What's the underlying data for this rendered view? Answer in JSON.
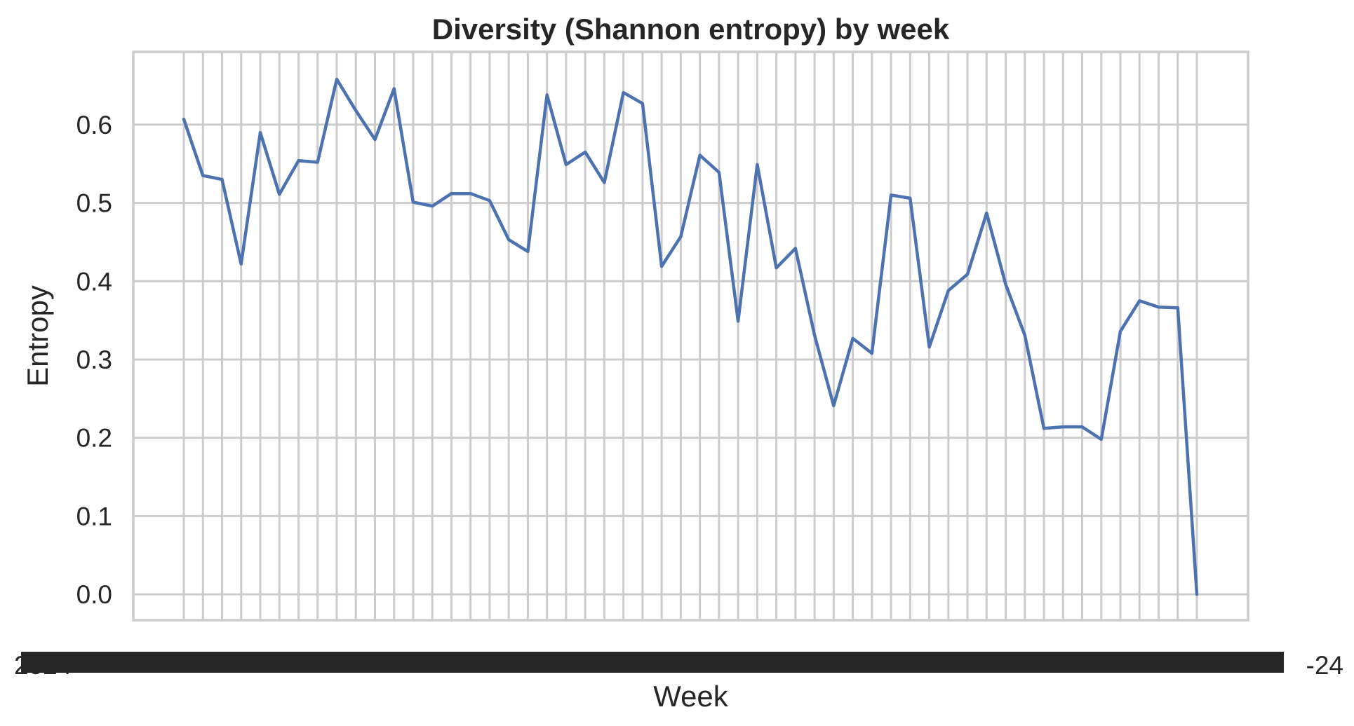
{
  "chart_data": {
    "type": "line",
    "title": "Diversity (Shannon entropy) by week",
    "xlabel": "Week",
    "ylabel": "Entropy",
    "ylim": [
      -0.033,
      0.693
    ],
    "grid": true,
    "series_color": "#4c72b0",
    "grid_color": "#cccccc",
    "text_color": "#262626",
    "yticks": [
      {
        "value": 0.0,
        "label": "0.0"
      },
      {
        "value": 0.1,
        "label": "0.1"
      },
      {
        "value": 0.2,
        "label": "0.2"
      },
      {
        "value": 0.3,
        "label": "0.3"
      },
      {
        "value": 0.4,
        "label": "0.4"
      },
      {
        "value": 0.5,
        "label": "0.5"
      },
      {
        "value": 0.6,
        "label": "0.6"
      }
    ],
    "x_first_label": "2024-",
    "x_last_label": "-24",
    "series": [
      {
        "values": [
          0.607,
          0.535,
          0.53,
          0.422,
          0.59,
          0.511,
          0.554,
          0.552,
          0.658,
          0.618,
          0.581,
          0.646,
          0.501,
          0.496,
          0.512,
          0.512,
          0.503,
          0.453,
          0.438,
          0.638,
          0.549,
          0.565,
          0.526,
          0.641,
          0.627,
          0.419,
          0.457,
          0.561,
          0.539,
          0.349,
          0.549,
          0.417,
          0.442,
          0.331,
          0.241,
          0.327,
          0.308,
          0.51,
          0.506,
          0.316,
          0.388,
          0.409,
          0.487,
          0.396,
          0.331,
          0.212,
          0.214,
          0.214,
          0.198,
          0.336,
          0.375,
          0.367,
          0.366,
          0.0
        ]
      }
    ]
  }
}
